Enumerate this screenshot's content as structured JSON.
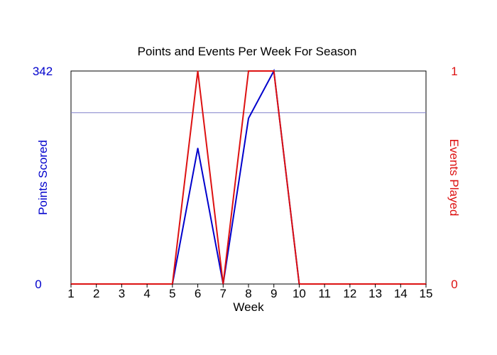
{
  "chart_data": {
    "type": "line",
    "title": "Points and Events Per Week For Season",
    "xlabel": "Week",
    "ylabel_left": "Points Scored",
    "ylabel_right": "Events Played",
    "x": [
      1,
      2,
      3,
      4,
      5,
      6,
      7,
      8,
      9,
      10,
      11,
      12,
      13,
      14,
      15
    ],
    "xlim": [
      1,
      15
    ],
    "ylim_left": [
      0,
      342
    ],
    "ylim_right": [
      0,
      1
    ],
    "y_ticks_left": [
      "0",
      "342"
    ],
    "y_ticks_right": [
      "0",
      "1"
    ],
    "reference_line_left": 275,
    "grid": false,
    "series": [
      {
        "axis": "left",
        "color": "#0000cc",
        "values": [
          0,
          0,
          0,
          0,
          0,
          218,
          0,
          266,
          342,
          0,
          0,
          0,
          0,
          0,
          0
        ]
      },
      {
        "axis": "right",
        "color": "#dd1111",
        "values": [
          0,
          0,
          0,
          0,
          0,
          1,
          0,
          1,
          1,
          0,
          0,
          0,
          0,
          0,
          0
        ]
      }
    ],
    "colors": {
      "left_axis": "#0000cc",
      "right_axis": "#dd1111",
      "reference_line": "#8080cc"
    }
  }
}
